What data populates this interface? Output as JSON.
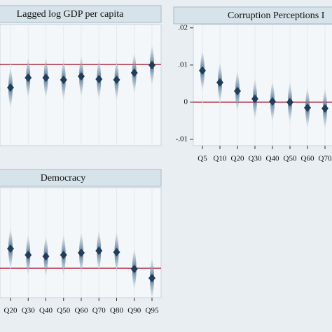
{
  "chart_data": [
    {
      "type": "scatter",
      "title": "Lagged log GDP per capita",
      "categories": [
        null,
        null,
        null,
        null,
        null,
        null,
        null,
        null,
        null
      ],
      "values": [
        -0.033,
        -0.019,
        -0.019,
        -0.022,
        -0.017,
        -0.021,
        -0.022,
        -0.012,
        -0.001
      ],
      "ylim": [
        -0.116,
        0.057
      ],
      "reference_line": 0,
      "color": "#1f3d5c",
      "line_color": "#b0283c",
      "grid": true
    },
    {
      "type": "scatter",
      "title": "Corruption Perceptions I",
      "categories": [
        "Q5",
        "Q10",
        "Q20",
        "Q30",
        "Q40",
        "Q50",
        "Q60",
        "Q70"
      ],
      "values": [
        0.0085,
        0.0053,
        0.003,
        0.0009,
        0.0002,
        0,
        -0.0015,
        -0.0017
      ],
      "ylim": [
        -0.0117,
        0.0209
      ],
      "yticks": [
        {
          "value": 0.02,
          "label": ".02"
        },
        {
          "value": 0.01,
          "label": ".01"
        },
        0,
        {
          "value": -0.01,
          "label": "-.01"
        }
      ],
      "reference_line": 0,
      "color": "#1f3d5c",
      "line_color": "#b0283c",
      "grid": true
    },
    {
      "type": "scatter",
      "title": "Democracy",
      "categories": [
        "Q20",
        "Q30",
        "Q40",
        "Q50",
        "Q60",
        "Q70",
        "Q80",
        "Q90",
        "Q95"
      ],
      "values": [
        0.028,
        0.019,
        0.017,
        0.019,
        0.022,
        0.025,
        0.023,
        -0.001,
        -0.014
      ],
      "ylim": [
        -0.042,
        0.115
      ],
      "reference_line": 0,
      "color": "#1f3d5c",
      "line_color": "#b0283c",
      "grid": true
    }
  ]
}
